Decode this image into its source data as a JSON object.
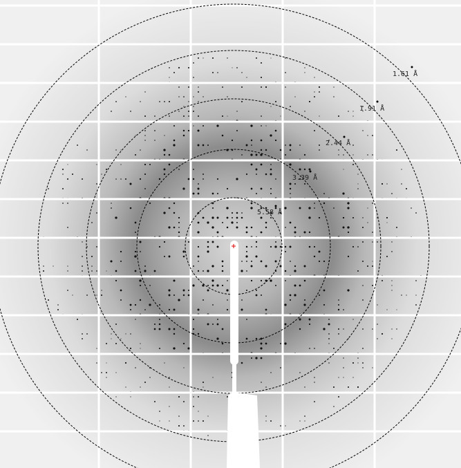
{
  "resolution_rings": [
    {
      "label": "1.61 Å"
    },
    {
      "label": "1.91 Å"
    },
    {
      "label": "2.44 Å"
    },
    {
      "label": "3.39 Å"
    },
    {
      "label": "5.58 Å"
    }
  ]
}
